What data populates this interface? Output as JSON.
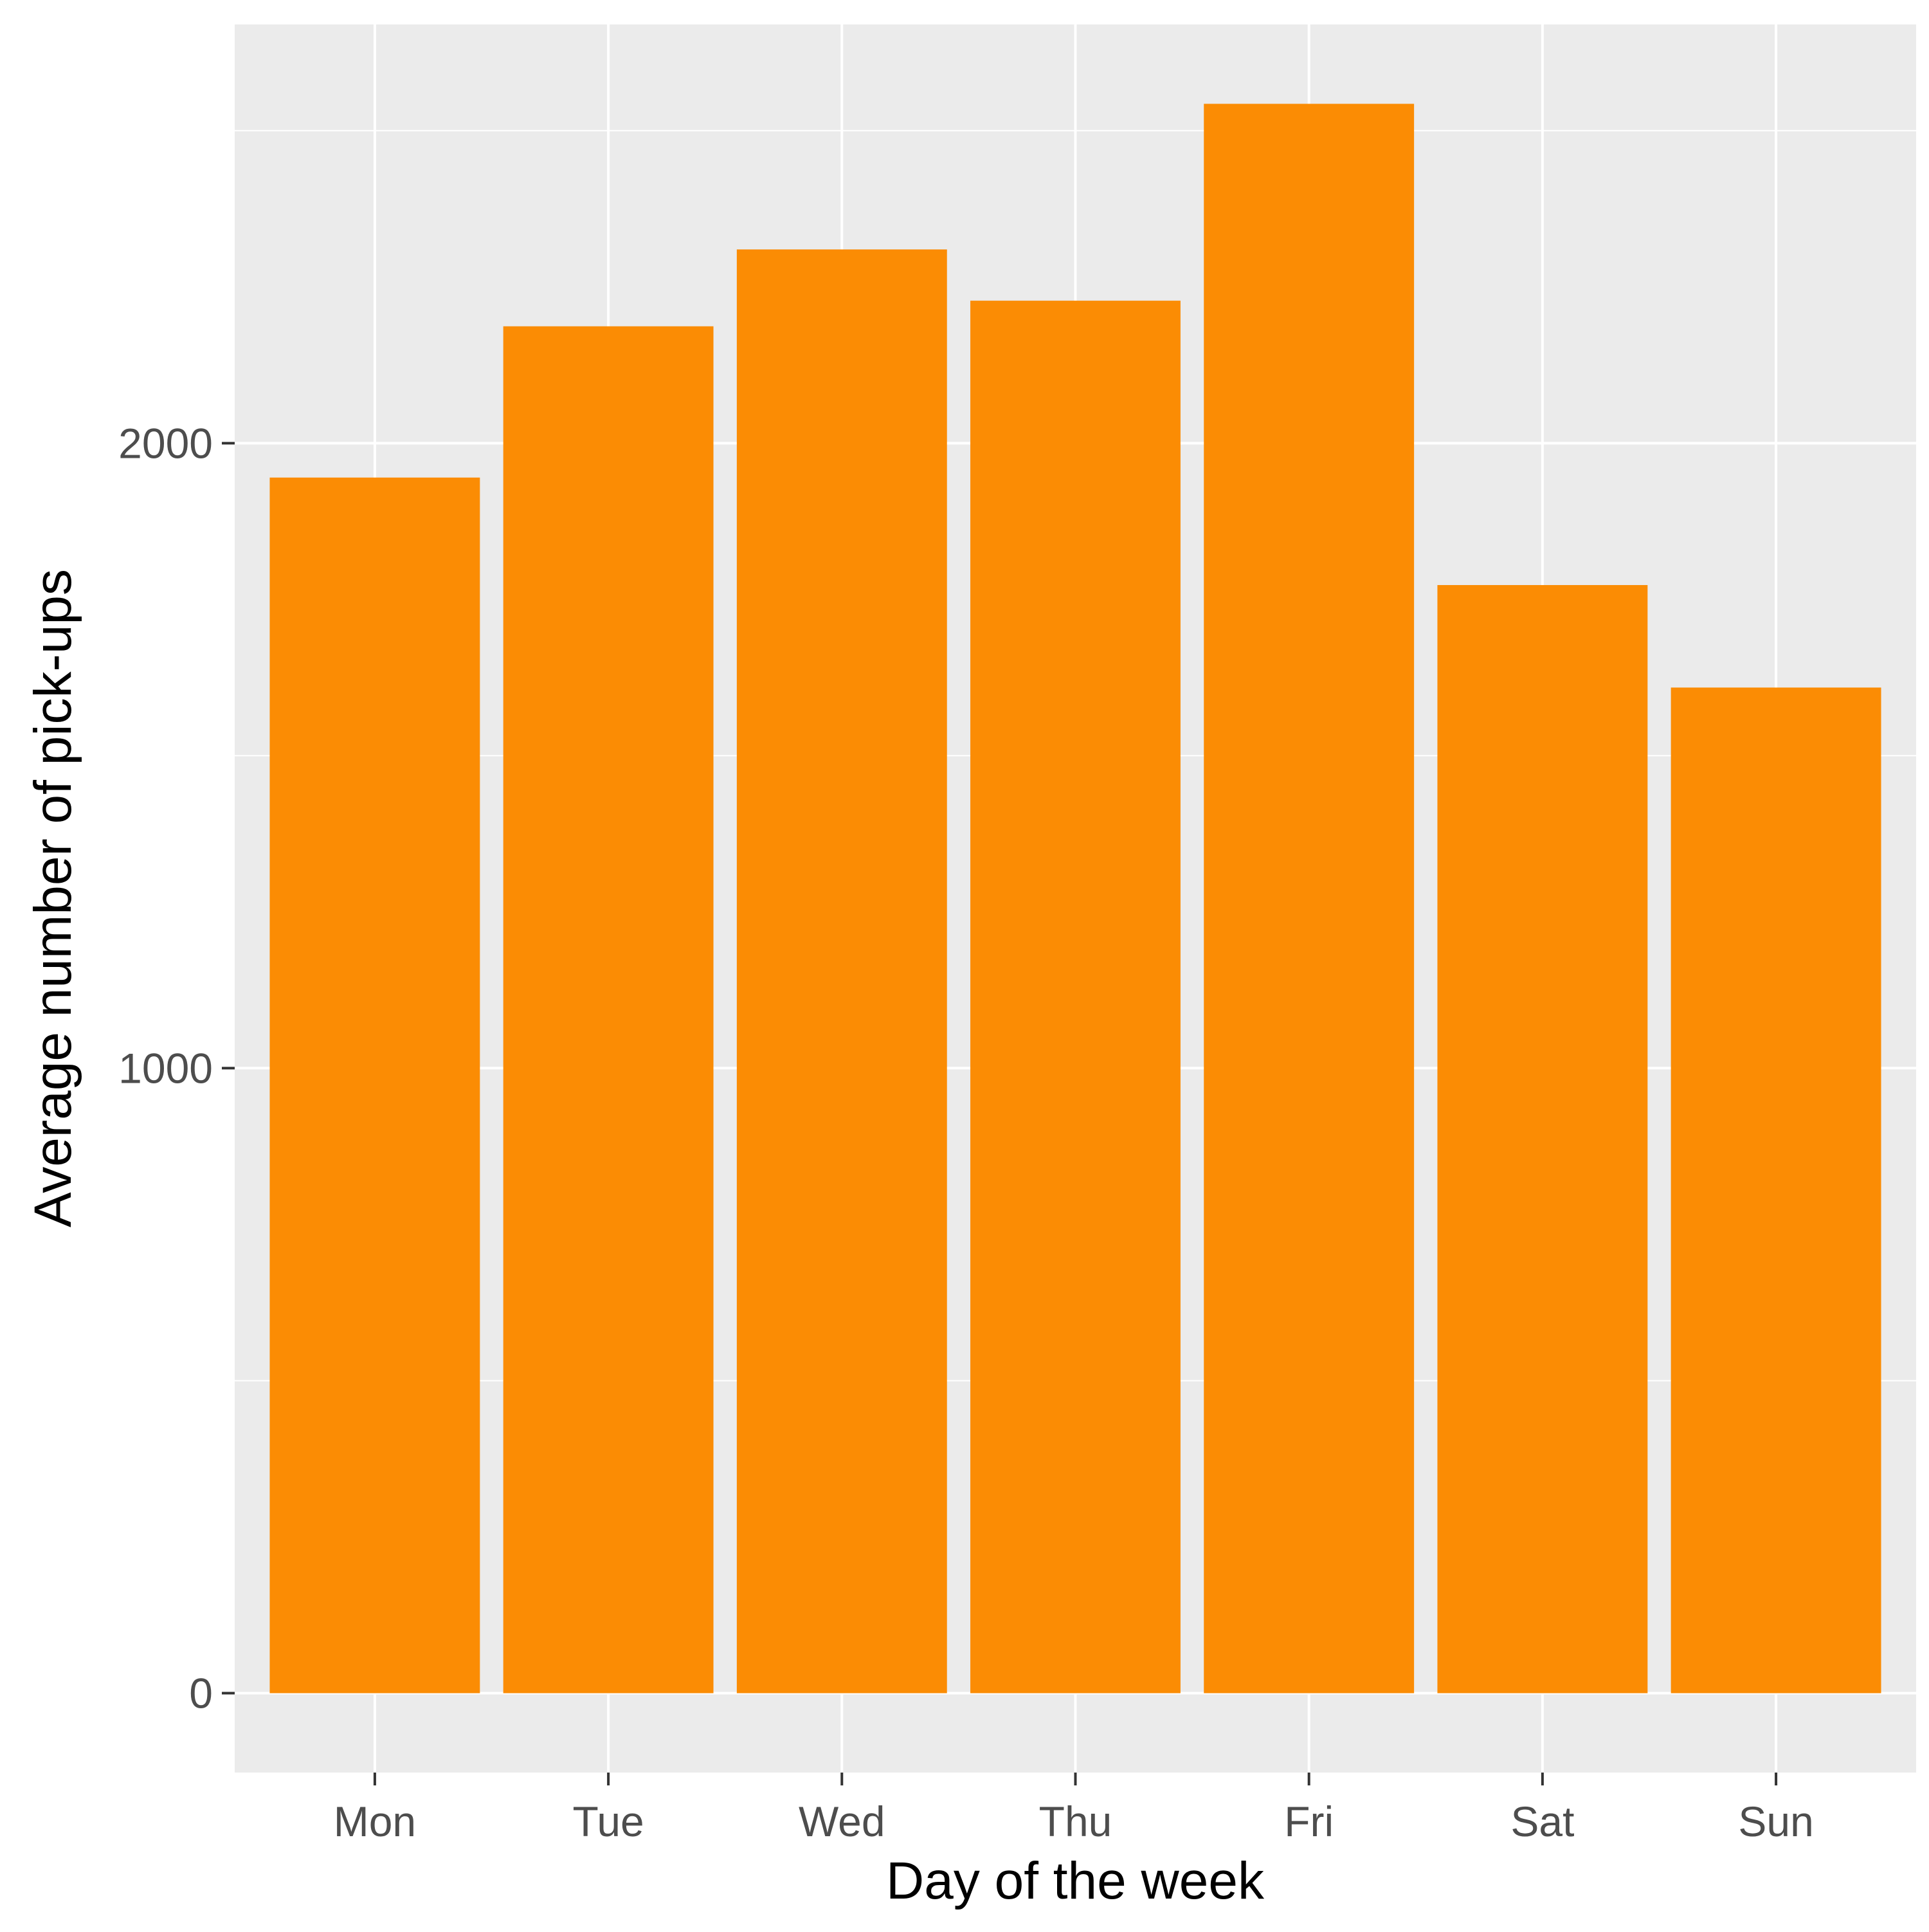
{
  "chart_data": {
    "type": "bar",
    "title": "",
    "xlabel": "Day of the week",
    "ylabel": "Average number of pick-ups",
    "categories": [
      "Mon",
      "Tue",
      "Wed",
      "Thu",
      "Fri",
      "Sat",
      "Sun"
    ],
    "values": [
      1945,
      2187,
      2310,
      2228,
      2543,
      1773,
      1609
    ],
    "ylim": [
      -127,
      2670
    ],
    "yticks": [
      0,
      1000,
      2000
    ],
    "grid": true,
    "colors": {
      "bar": "#FB8C04",
      "panel": "#EBEBEB",
      "grid": "#FFFFFF"
    }
  }
}
